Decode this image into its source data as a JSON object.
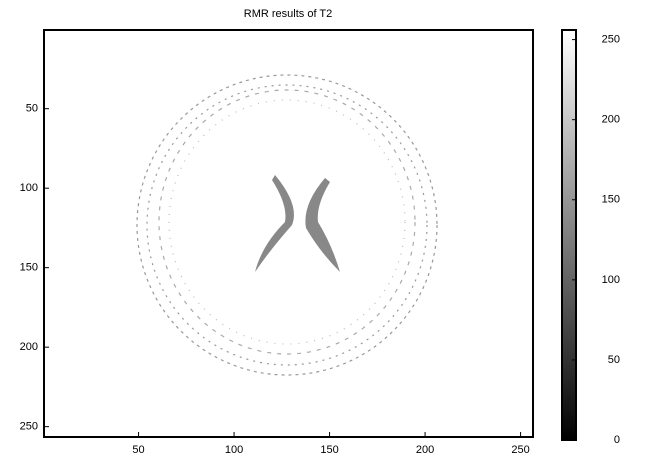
{
  "chart_data": {
    "type": "image",
    "title": "RMR results of T2",
    "colormap": "gray",
    "xlim": [
      0.5,
      256.5
    ],
    "ylim": [
      0.5,
      256.5
    ],
    "y_reversed": true,
    "xticks": [
      50,
      100,
      150,
      200,
      250
    ],
    "yticks": [
      50,
      100,
      150,
      200,
      250
    ],
    "colorbar": {
      "clim": [
        0,
        256
      ],
      "ticks": [
        0,
        50,
        100,
        150,
        200,
        250
      ]
    }
  }
}
